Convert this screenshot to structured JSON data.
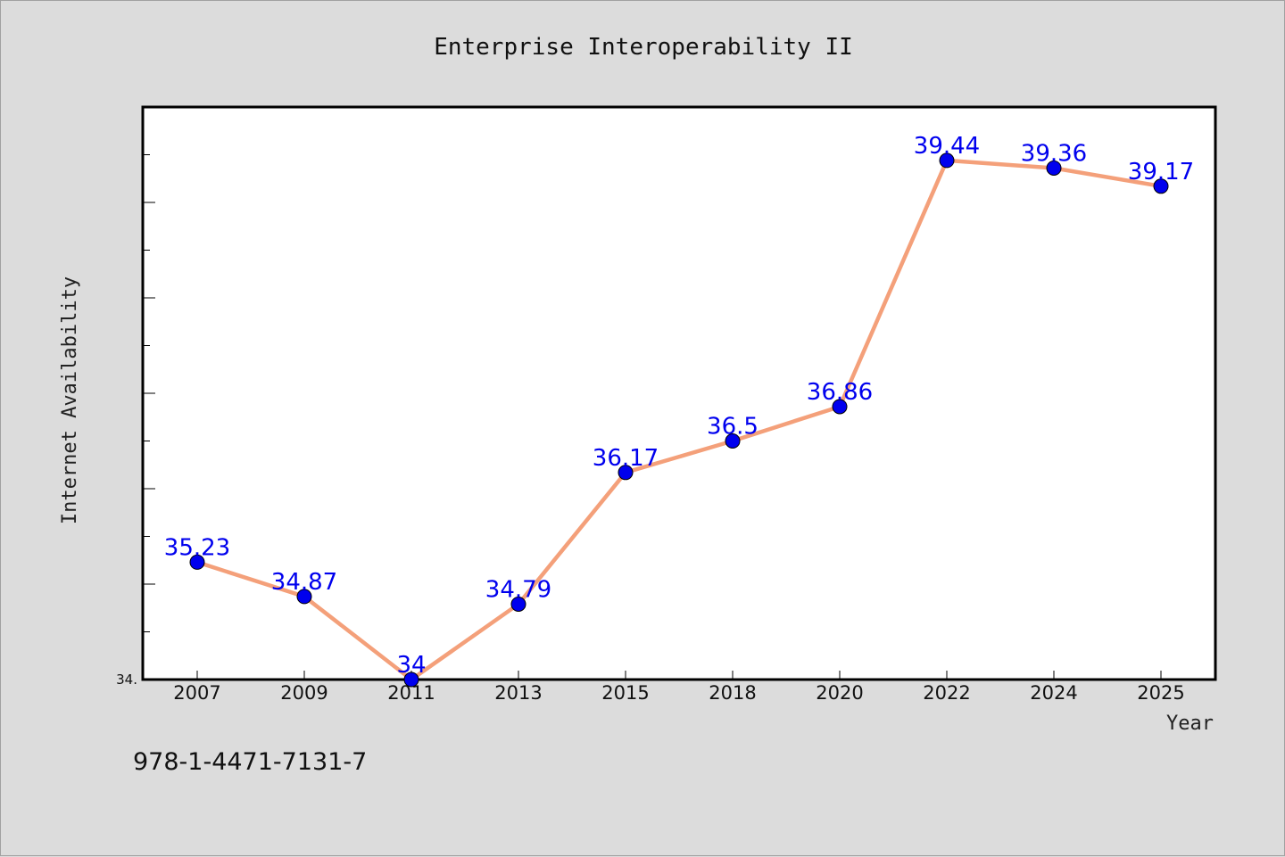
{
  "chart_data": {
    "type": "line",
    "title": "Enterprise Interoperability II",
    "xlabel": "Year",
    "ylabel": "Internet Availability",
    "categories": [
      "2007",
      "2009",
      "2011",
      "2013",
      "2015",
      "2018",
      "2020",
      "2022",
      "2024",
      "2025"
    ],
    "series": [
      {
        "values": [
          35.23,
          34.87,
          34,
          34.79,
          36.17,
          36.5,
          36.86,
          39.44,
          39.36,
          39.17
        ],
        "labels": [
          "35.23",
          "34.87",
          "34",
          "34.79",
          "36.17",
          "36.5",
          "36.86",
          "39.44",
          "39.36",
          "39.17"
        ]
      }
    ],
    "ylim": [
      34,
      40
    ],
    "ytick_labels": [
      "34."
    ],
    "line_color": "#f4a07a",
    "marker_color": "#0000ee",
    "label_color": "#0000ee",
    "grid": false,
    "legend": "none"
  },
  "footer_note": "978-1-4471-7131-7"
}
